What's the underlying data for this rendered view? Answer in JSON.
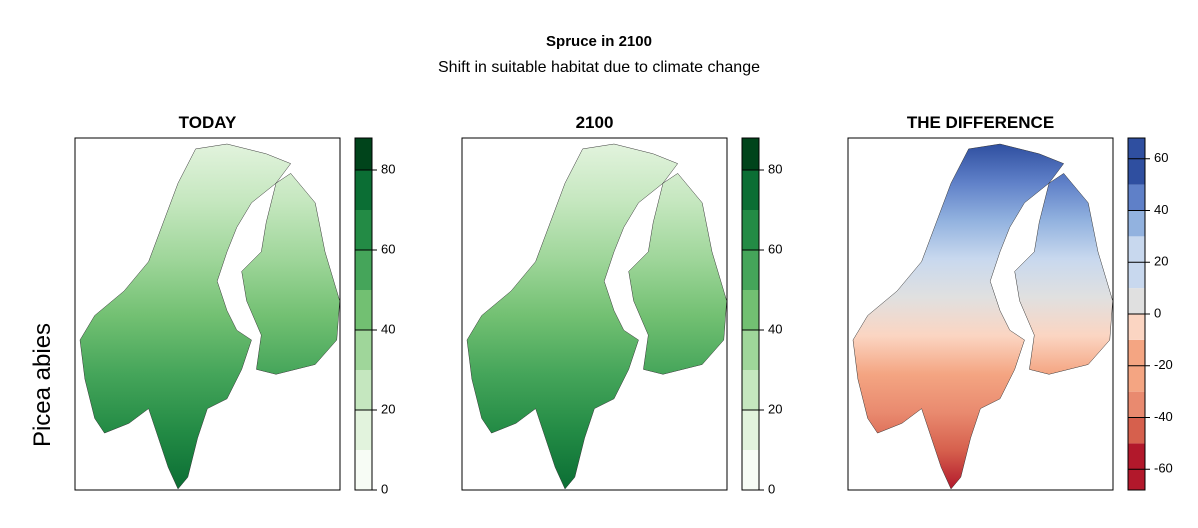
{
  "header": {
    "title": "Spruce in 2100",
    "subtitle": "Shift in suitable habitat due to climate change"
  },
  "row_label": "Picea abies",
  "panels": [
    {
      "title": "TODAY",
      "colorbar": {
        "lim": [
          0,
          88
        ],
        "bins": [
          0,
          10,
          20,
          30,
          40,
          50,
          60,
          70,
          80,
          88
        ],
        "ticks": [
          0,
          20,
          40,
          60,
          80
        ],
        "colors": [
          "#f7fcf5",
          "#e2f3dd",
          "#c5e7bf",
          "#9fd69a",
          "#72c072",
          "#45a55a",
          "#238b45",
          "#0b6e34",
          "#00441b"
        ]
      }
    },
    {
      "title": "2100",
      "colorbar": {
        "lim": [
          0,
          88
        ],
        "bins": [
          0,
          10,
          20,
          30,
          40,
          50,
          60,
          70,
          80,
          88
        ],
        "ticks": [
          0,
          20,
          40,
          60,
          80
        ],
        "colors": [
          "#f7fcf5",
          "#e2f3dd",
          "#c5e7bf",
          "#9fd69a",
          "#72c072",
          "#45a55a",
          "#238b45",
          "#0b6e34",
          "#00441b"
        ]
      }
    },
    {
      "title": "THE DIFFERENCE",
      "colorbar": {
        "lim": [
          -68,
          68
        ],
        "bins": [
          -68,
          -50,
          -40,
          -30,
          -10,
          0,
          10,
          30,
          40,
          50,
          68
        ],
        "ticks": [
          -60,
          -40,
          -20,
          0,
          20,
          40,
          60
        ],
        "colors": [
          "#b2182b",
          "#d6604d",
          "#e98a6f",
          "#f4a582",
          "#fbd5c2",
          "#e0e0e0",
          "#c8d8ee",
          "#92b2df",
          "#5f80c8",
          "#2f4fa0"
        ]
      }
    }
  ]
}
